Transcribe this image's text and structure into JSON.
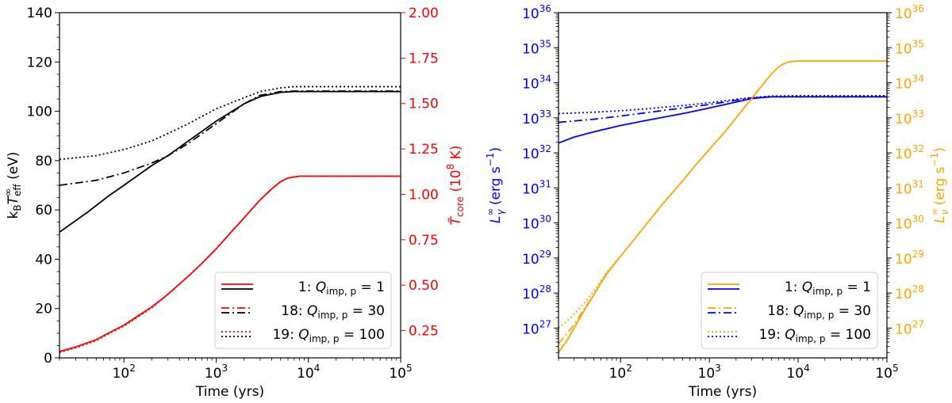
{
  "chart_data": [
    {
      "type": "line",
      "xlabel": "Time (yrs)",
      "xscale": "log",
      "xlim": [
        20,
        100000
      ],
      "x_ticks": [
        {
          "v": 100,
          "base": "10",
          "exp": "2"
        },
        {
          "v": 1000,
          "base": "10",
          "exp": "3"
        },
        {
          "v": 10000,
          "base": "10",
          "exp": "4"
        },
        {
          "v": 100000,
          "base": "10",
          "exp": "5"
        }
      ],
      "ylabel_left": {
        "main": "k",
        "sub1": "B",
        "T": "T",
        "sup": "∞",
        "sub2": "eff",
        "unit": " (eV)"
      },
      "ylim_left": [
        0,
        140
      ],
      "yticks_left": [
        "0",
        "20",
        "40",
        "60",
        "80",
        "100",
        "120",
        "140"
      ],
      "ylabel_right": {
        "main": "T̃",
        "sub": "core",
        "unit_pre": " (10",
        "unit_sup": "8",
        "unit_post": " K)"
      },
      "ylim_right": [
        0.1,
        2.0
      ],
      "yticks_right": [
        "0.25",
        "0.50",
        "0.75",
        "1.00",
        "1.25",
        "1.50",
        "1.75",
        "2.00"
      ],
      "left_color": "#000000",
      "right_color": "#ff0000",
      "series": [
        {
          "axis": "left",
          "style": "solid",
          "x": [
            20,
            40,
            70,
            100,
            200,
            300,
            500,
            1000,
            2000,
            3000,
            5000,
            7000,
            10000,
            100000
          ],
          "y": [
            51,
            59,
            66,
            70,
            78,
            82,
            88,
            96,
            103,
            106,
            107.7,
            108,
            108,
            108
          ]
        },
        {
          "axis": "left",
          "style": "dashdot",
          "x": [
            20,
            50,
            100,
            200,
            300,
            500,
            1000,
            2000,
            3000,
            5000,
            7000,
            10000,
            100000
          ],
          "y": [
            70,
            72,
            75,
            79,
            82,
            87,
            95,
            103,
            106.5,
            108,
            108.2,
            108.2,
            108.2
          ]
        },
        {
          "axis": "left",
          "style": "dotted",
          "x": [
            20,
            50,
            100,
            200,
            300,
            500,
            1000,
            2000,
            3000,
            5000,
            7000,
            10000,
            100000
          ],
          "y": [
            80.5,
            82,
            84.5,
            88,
            91,
            95,
            101,
            105.5,
            108,
            109.5,
            110,
            110,
            110
          ]
        },
        {
          "axis": "right",
          "style": "solid",
          "x": [
            20,
            30,
            50,
            70,
            100,
            200,
            300,
            500,
            700,
            1000,
            1500,
            2000,
            3000,
            4000,
            5000,
            6000,
            8000,
            10000,
            100000
          ],
          "y": [
            0.135,
            0.16,
            0.2,
            0.24,
            0.28,
            0.38,
            0.45,
            0.55,
            0.62,
            0.7,
            0.8,
            0.87,
            0.97,
            1.03,
            1.07,
            1.09,
            1.1,
            1.1,
            1.1
          ]
        },
        {
          "axis": "right",
          "style": "dotted",
          "x": [
            20,
            30,
            50,
            70,
            100,
            200,
            300,
            500,
            700,
            1000,
            1500,
            2000,
            3000,
            4000,
            5000,
            6000,
            8000,
            10000,
            100000
          ],
          "y": [
            0.13,
            0.155,
            0.195,
            0.235,
            0.275,
            0.375,
            0.45,
            0.55,
            0.62,
            0.7,
            0.8,
            0.87,
            0.97,
            1.03,
            1.07,
            1.09,
            1.1,
            1.1,
            1.1
          ]
        }
      ],
      "legend": {
        "placement": "lower-right",
        "entries": [
          {
            "style": "solid",
            "num": "1: ",
            "q": "Q",
            "qsub": "imp, p",
            "val": " = 1"
          },
          {
            "style": "dashdot",
            "num": "18: ",
            "q": "Q",
            "qsub": "imp, p",
            "val": " = 30"
          },
          {
            "style": "dotted",
            "num": "19: ",
            "q": "Q",
            "qsub": "imp, p",
            "val": " = 100"
          }
        ]
      }
    },
    {
      "type": "line",
      "xlabel": "Time (yrs)",
      "xscale": "log",
      "xlim": [
        20,
        100000
      ],
      "x_ticks": [
        {
          "v": 100,
          "base": "10",
          "exp": "2"
        },
        {
          "v": 1000,
          "base": "10",
          "exp": "3"
        },
        {
          "v": 10000,
          "base": "10",
          "exp": "4"
        },
        {
          "v": 100000,
          "base": "10",
          "exp": "5"
        }
      ],
      "yscale": "log",
      "ylim_log10": [
        26.15,
        36.0
      ],
      "yticks_left": [
        {
          "v": 27,
          "base": "10",
          "exp": "27"
        },
        {
          "v": 28,
          "base": "10",
          "exp": "28"
        },
        {
          "v": 29,
          "base": "10",
          "exp": "29"
        },
        {
          "v": 30,
          "base": "10",
          "exp": "30"
        },
        {
          "v": 31,
          "base": "10",
          "exp": "31"
        },
        {
          "v": 32,
          "base": "10",
          "exp": "32"
        },
        {
          "v": 33,
          "base": "10",
          "exp": "33"
        },
        {
          "v": 34,
          "base": "10",
          "exp": "34"
        },
        {
          "v": 35,
          "base": "10",
          "exp": "35"
        },
        {
          "v": 36,
          "base": "10",
          "exp": "36"
        }
      ],
      "yticks_right": [
        {
          "v": 27,
          "base": "10",
          "exp": "27"
        },
        {
          "v": 28,
          "base": "10",
          "exp": "28"
        },
        {
          "v": 29,
          "base": "10",
          "exp": "29"
        },
        {
          "v": 30,
          "base": "10",
          "exp": "30"
        },
        {
          "v": 31,
          "base": "10",
          "exp": "31"
        },
        {
          "v": 32,
          "base": "10",
          "exp": "32"
        },
        {
          "v": 33,
          "base": "10",
          "exp": "33"
        },
        {
          "v": 34,
          "base": "10",
          "exp": "34"
        },
        {
          "v": 35,
          "base": "10",
          "exp": "35"
        },
        {
          "v": 36,
          "base": "10",
          "exp": "36"
        }
      ],
      "ylabel_left": {
        "main": "L",
        "sub": "γ",
        "sup": "∞",
        "unit_pre": " (erg s",
        "unit_sup": "−1",
        "unit_post": ")"
      },
      "ylabel_right": {
        "main": "L",
        "sub": "ν",
        "sup": "∞",
        "unit_pre": " (erg s",
        "unit_sup": "−1",
        "unit_post": ")"
      },
      "left_color": "#0000ff",
      "right_color": "#ffa500",
      "series": [
        {
          "axis": "left",
          "style": "solid",
          "x": [
            20,
            30,
            50,
            100,
            200,
            500,
            1000,
            2000,
            3000,
            5000,
            10000,
            100000
          ],
          "y_log10": [
            32.28,
            32.45,
            32.6,
            32.78,
            32.93,
            33.12,
            33.28,
            33.45,
            33.55,
            33.6,
            33.6,
            33.6
          ]
        },
        {
          "axis": "left",
          "style": "dashdot",
          "x": [
            20,
            50,
            100,
            200,
            500,
            1000,
            2000,
            3000,
            5000,
            10000,
            100000
          ],
          "y_log10": [
            32.87,
            32.96,
            33.05,
            33.15,
            33.28,
            33.38,
            33.5,
            33.57,
            33.6,
            33.6,
            33.6
          ]
        },
        {
          "axis": "left",
          "style": "dotted",
          "x": [
            20,
            50,
            100,
            200,
            500,
            1000,
            2000,
            3000,
            5000,
            10000,
            100000
          ],
          "y_log10": [
            33.12,
            33.16,
            33.2,
            33.26,
            33.35,
            33.43,
            33.53,
            33.58,
            33.62,
            33.63,
            33.63
          ]
        },
        {
          "axis": "right",
          "style": "solid",
          "x": [
            20,
            25,
            30,
            40,
            50,
            70,
            100,
            150,
            200,
            300,
            500,
            700,
            1000,
            1500,
            2000,
            3000,
            4000,
            5000,
            6000,
            7000,
            8000,
            10000,
            100000
          ],
          "y_log10": [
            26.3,
            26.65,
            27.0,
            27.55,
            27.95,
            28.55,
            29.05,
            29.6,
            30.0,
            30.55,
            31.2,
            31.65,
            32.1,
            32.6,
            33.0,
            33.55,
            33.95,
            34.25,
            34.45,
            34.55,
            34.6,
            34.62,
            34.62
          ]
        },
        {
          "axis": "right",
          "style": "dashdot",
          "x": [
            20,
            25,
            30,
            40,
            50,
            70,
            100
          ],
          "y_log10": [
            26.55,
            26.85,
            27.1,
            27.6,
            27.95,
            28.55,
            29.05
          ]
        },
        {
          "axis": "right",
          "style": "dotted",
          "x": [
            20,
            25,
            30,
            40,
            50,
            70,
            100
          ],
          "y_log10": [
            27.0,
            27.2,
            27.4,
            27.75,
            28.05,
            28.6,
            29.05
          ]
        }
      ],
      "legend": {
        "placement": "lower-right",
        "entries": [
          {
            "style": "solid",
            "num": "1: ",
            "q": "Q",
            "qsub": "imp, p",
            "val": " = 1"
          },
          {
            "style": "dashdot",
            "num": "18: ",
            "q": "Q",
            "qsub": "imp, p",
            "val": " = 30"
          },
          {
            "style": "dotted",
            "num": "19: ",
            "q": "Q",
            "qsub": "imp, p",
            "val": " = 100"
          }
        ]
      }
    }
  ]
}
